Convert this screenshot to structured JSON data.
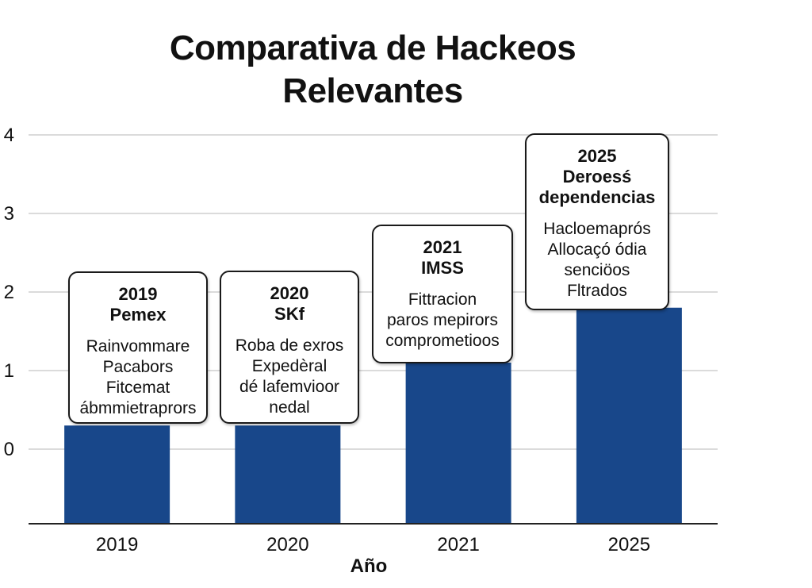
{
  "title_lines": [
    "Comparativa de Hackeos",
    "Relevantes"
  ],
  "colors": {
    "bar": "#18478a",
    "grid": "#cfcfcf",
    "axis": "#222222"
  },
  "chart_data": {
    "type": "bar",
    "title": "Comparativa de Hackeos Relevantes",
    "xlabel": "Año",
    "ylabel": "",
    "categories": [
      "2019",
      "2020",
      "2021",
      "2025"
    ],
    "values": [
      0.3,
      0.3,
      1.1,
      1.8
    ],
    "ylim": [
      -0.95,
      4.05
    ],
    "yticks": [
      0,
      1,
      2,
      3,
      4
    ],
    "grid": true,
    "annotations": [
      {
        "header": [
          "2019",
          "Pemex"
        ],
        "body": [
          "Rainvommare",
          "Pacabors",
          "Fitcemat",
          "ábmmietraprors"
        ]
      },
      {
        "header": [
          "2020",
          "SKf"
        ],
        "body": [
          "Roba de exros",
          "Expedèral",
          "dé lafemvioor",
          "nedal"
        ]
      },
      {
        "header": [
          "2021",
          "IMSS"
        ],
        "body": [
          "Fittracion",
          "paros mepirors",
          "comprometioos"
        ]
      },
      {
        "header": [
          "2025",
          "Deroesś",
          "dependencias"
        ],
        "body": [
          "Hacloemaprós",
          "Allocaçó ódia",
          "senciöos",
          "Fltrados"
        ]
      }
    ]
  }
}
